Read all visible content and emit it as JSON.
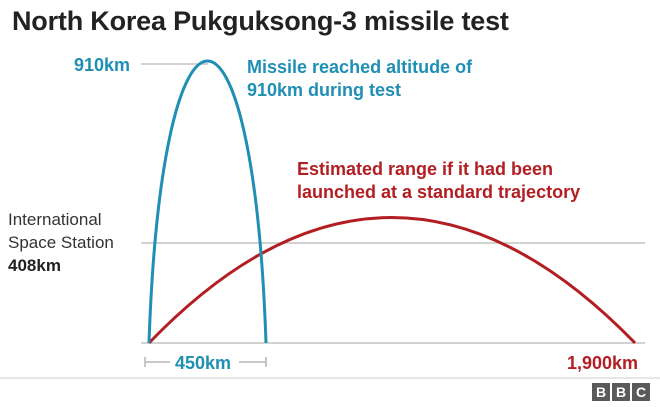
{
  "title": "North Korea Pukguksong-3 missile test",
  "colors": {
    "blue": "#1f8fb4",
    "red": "#b31e23",
    "grey_line": "#c4c4c4",
    "axis": "#b5b5b5",
    "text": "#222222"
  },
  "blue_trajectory": {
    "peak_label": "910km",
    "note_line1": "Missile reached altitude of",
    "note_line2": "910km during test",
    "range_label": "450km"
  },
  "red_trajectory": {
    "note_line1": "Estimated range if it had been",
    "note_line2": "launched at a standard trajectory",
    "range_label": "1,900km"
  },
  "iss": {
    "line1": "International",
    "line2": "Space Station",
    "altitude": "408km"
  },
  "logo": {
    "letters": [
      "B",
      "B",
      "C"
    ]
  }
}
